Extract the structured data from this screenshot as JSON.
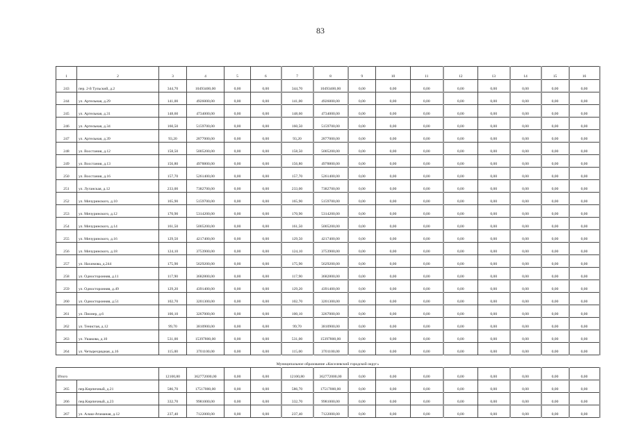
{
  "page_number": "83",
  "table": {
    "header": [
      "1",
      "2",
      "3",
      "4",
      "5",
      "6",
      "7",
      "8",
      "9",
      "10",
      "11",
      "12",
      "13",
      "14",
      "15",
      "16"
    ],
    "rows_before": [
      [
        "243",
        "пер. 2-й Тульский, д.2",
        "344,70",
        "10493400,00",
        "0,00",
        "0,00",
        "344,70",
        "10493400,00",
        "0,00",
        "0,00",
        "0,00",
        "0,00",
        "0,00",
        "0,00",
        "0,00",
        "0,00"
      ],
      [
        "244",
        "ул. Артельная, д.29",
        "141,00",
        "4926000,00",
        "0,00",
        "0,00",
        "141,00",
        "4926000,00",
        "0,00",
        "0,00",
        "0,00",
        "0,00",
        "0,00",
        "0,00",
        "0,00",
        "0,00"
      ],
      [
        "245",
        "ул. Артельная, д.31",
        "148,60",
        "4734000,00",
        "0,00",
        "0,00",
        "148,60",
        "4734000,00",
        "0,00",
        "0,00",
        "0,00",
        "0,00",
        "0,00",
        "0,00",
        "0,00",
        "0,00"
      ],
      [
        "246",
        "ул. Артельная, д.34",
        "160,50",
        "5159700,00",
        "0,00",
        "0,00",
        "160,50",
        "5159700,00",
        "0,00",
        "0,00",
        "0,00",
        "0,00",
        "0,00",
        "0,00",
        "0,00",
        "0,00"
      ],
      [
        "247",
        "ул. Артельная, д.39",
        "93,20",
        "2877000,00",
        "0,00",
        "0,00",
        "93,20",
        "2877000,00",
        "0,00",
        "0,00",
        "0,00",
        "0,00",
        "0,00",
        "0,00",
        "0,00",
        "0,00"
      ],
      [
        "248",
        "ул. Восстания, д.12",
        "158,50",
        "5005200,00",
        "0,00",
        "0,00",
        "158,50",
        "5005200,00",
        "0,00",
        "0,00",
        "0,00",
        "0,00",
        "0,00",
        "0,00",
        "0,00",
        "0,00"
      ],
      [
        "249",
        "ул. Восстания, д.13",
        "156,80",
        "4978800,00",
        "0,00",
        "0,00",
        "156,80",
        "4978800,00",
        "0,00",
        "0,00",
        "0,00",
        "0,00",
        "0,00",
        "0,00",
        "0,00",
        "0,00"
      ],
      [
        "250",
        "ул. Восстания, д.16",
        "157,70",
        "5261400,00",
        "0,00",
        "0,00",
        "157,70",
        "5261400,00",
        "0,00",
        "0,00",
        "0,00",
        "0,00",
        "0,00",
        "0,00",
        "0,00",
        "0,00"
      ],
      [
        "251",
        "ул. Луганская, д.12",
        "233,00",
        "7382700,00",
        "0,00",
        "0,00",
        "233,00",
        "7382700,00",
        "0,00",
        "0,00",
        "0,00",
        "0,00",
        "0,00",
        "0,00",
        "0,00",
        "0,00"
      ],
      [
        "252",
        "ул. Мичуринского, д.10",
        "165,90",
        "5159700,00",
        "0,00",
        "0,00",
        "165,90",
        "5159700,00",
        "0,00",
        "0,00",
        "0,00",
        "0,00",
        "0,00",
        "0,00",
        "0,00",
        "0,00"
      ],
      [
        "253",
        "ул. Мичуринского, д.12",
        "170,90",
        "5314200,00",
        "0,00",
        "0,00",
        "170,90",
        "5314200,00",
        "0,00",
        "0,00",
        "0,00",
        "0,00",
        "0,00",
        "0,00",
        "0,00",
        "0,00"
      ],
      [
        "254",
        "ул. Мичуринского, д.14",
        "161,50",
        "5005200,00",
        "0,00",
        "0,00",
        "161,50",
        "5005200,00",
        "0,00",
        "0,00",
        "0,00",
        "0,00",
        "0,00",
        "0,00",
        "0,00",
        "0,00"
      ],
      [
        "255",
        "ул. Мичуринского, д.16",
        "129,50",
        "4217400,00",
        "0,00",
        "0,00",
        "129,50",
        "4217400,00",
        "0,00",
        "0,00",
        "0,00",
        "0,00",
        "0,00",
        "0,00",
        "0,00",
        "0,00"
      ],
      [
        "256",
        "ул. Мичуринского, д.18",
        "124,10",
        "3753900,00",
        "0,00",
        "0,00",
        "124,10",
        "3753900,00",
        "0,00",
        "0,00",
        "0,00",
        "0,00",
        "0,00",
        "0,00",
        "0,00",
        "0,00"
      ],
      [
        "257",
        "ул. Нахимова, д.244",
        "175,90",
        "5629200,00",
        "0,00",
        "0,00",
        "175,90",
        "5629200,00",
        "0,00",
        "0,00",
        "0,00",
        "0,00",
        "0,00",
        "0,00",
        "0,00",
        "0,00"
      ],
      [
        "258",
        "ул. Односторонняя, д.11",
        "117,90",
        "3682800,00",
        "0,00",
        "0,00",
        "117,90",
        "3682800,00",
        "0,00",
        "0,00",
        "0,00",
        "0,00",
        "0,00",
        "0,00",
        "0,00",
        "0,00"
      ],
      [
        "259",
        "ул. Односторонняя, д.49",
        "129,20",
        "4391400,00",
        "0,00",
        "0,00",
        "129,20",
        "4391400,00",
        "0,00",
        "0,00",
        "0,00",
        "0,00",
        "0,00",
        "0,00",
        "0,00",
        "0,00"
      ],
      [
        "260",
        "ул. Односторонняя, д.51",
        "102,70",
        "3201300,00",
        "0,00",
        "0,00",
        "102,70",
        "3201300,00",
        "0,00",
        "0,00",
        "0,00",
        "0,00",
        "0,00",
        "0,00",
        "0,00",
        "0,00"
      ],
      [
        "261",
        "ул. Пионер, д.6",
        "100,10",
        "3267000,00",
        "0,00",
        "0,00",
        "100,10",
        "3267000,00",
        "0,00",
        "0,00",
        "0,00",
        "0,00",
        "0,00",
        "0,00",
        "0,00",
        "0,00"
      ],
      [
        "262",
        "ул. Тенистая, д.12",
        "99,70",
        "3810900,00",
        "0,00",
        "0,00",
        "99,70",
        "3810900,00",
        "0,00",
        "0,00",
        "0,00",
        "0,00",
        "0,00",
        "0,00",
        "0,00",
        "0,00"
      ],
      [
        "263",
        "ул. Ушакова, д.10",
        "531,00",
        "15397800,00",
        "0,00",
        "0,00",
        "531,00",
        "15397800,00",
        "0,00",
        "0,00",
        "0,00",
        "0,00",
        "0,00",
        "0,00",
        "0,00",
        "0,00"
      ],
      [
        "264",
        "ул. Четырехрядная, д.16",
        "115,00",
        "3701100,00",
        "0,00",
        "0,00",
        "115,00",
        "3701100,00",
        "0,00",
        "0,00",
        "0,00",
        "0,00",
        "0,00",
        "0,00",
        "0,00",
        "0,00"
      ]
    ],
    "section_title": "Муниципальное образование «Киселевский городской округ»",
    "total": {
      "label": "Итого",
      "values": [
        "12100,80",
        "362772000,00",
        "0,00",
        "0,00",
        "12100,80",
        "362772000,00",
        "0,00",
        "0,00",
        "0,00",
        "0,00",
        "0,00",
        "0,00",
        "0,00",
        "0,00"
      ]
    },
    "rows_after": [
      [
        "265",
        "пер.Кирпичный, д.21",
        "586,70",
        "17517000,00",
        "0,00",
        "0,00",
        "586,70",
        "17517000,00",
        "0,00",
        "0,00",
        "0,00",
        "0,00",
        "0,00",
        "0,00",
        "0,00",
        "0,00"
      ],
      [
        "266",
        "пер.Кирпичный, д.23",
        "332,70",
        "9981000,00",
        "0,00",
        "0,00",
        "332,70",
        "9981000,00",
        "0,00",
        "0,00",
        "0,00",
        "0,00",
        "0,00",
        "0,00",
        "0,00",
        "0,00"
      ],
      [
        "267",
        "ул. Алаш-Атаманая, д.12",
        "237,40",
        "7122000,00",
        "0,00",
        "0,00",
        "237,40",
        "7122000,00",
        "0,00",
        "0,00",
        "0,00",
        "0,00",
        "0,00",
        "0,00",
        "0,00",
        "0,00"
      ]
    ]
  }
}
